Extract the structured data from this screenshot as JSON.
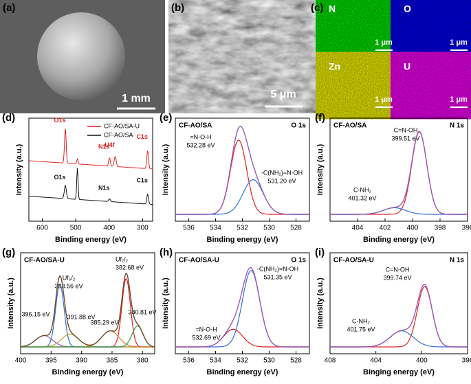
{
  "images": [
    {
      "label": "(a)",
      "scale_bar": "1 mm"
    },
    {
      "label": "(b)",
      "scale_bar": "5 μm"
    },
    {
      "label": "(c)",
      "maps": [
        {
          "element": "N",
          "scale_bar": "1 μm"
        },
        {
          "element": "O",
          "scale_bar": "1 μm"
        },
        {
          "element": "Zn",
          "scale_bar": "1 μm"
        },
        {
          "element": "U",
          "scale_bar": "1 μm"
        }
      ]
    }
  ],
  "chart_data": [
    {
      "type": "line",
      "panel_label": "(d)",
      "xlabel": "Binding energy (eV)",
      "ylabel": "Intensity (a.u.)",
      "xlim": [
        640,
        270
      ],
      "xticks": [
        600,
        500,
        400,
        300
      ],
      "series": [
        {
          "name": "CF-AO/SA-U",
          "color": "#e02020",
          "offset": 0.55,
          "peaks": [
            {
              "center": 531,
              "height": 0.42,
              "width": 2.5,
              "label": "O1s"
            },
            {
              "center": 495,
              "height": 0.06,
              "width": 2,
              "label": null
            },
            {
              "center": 399,
              "height": 0.1,
              "width": 2.5,
              "label": "N1s"
            },
            {
              "center": 382,
              "height": 0.12,
              "width": 3,
              "label": "U4f"
            },
            {
              "center": 285,
              "height": 0.22,
              "width": 2.5,
              "label": "C1s"
            }
          ]
        },
        {
          "name": "CF-AO/SA",
          "color": "#111111",
          "offset": 0.12,
          "peaks": [
            {
              "center": 531,
              "height": 0.16,
              "width": 3,
              "label": "O1s"
            },
            {
              "center": 495,
              "height": 0.38,
              "width": 2,
              "label": null
            },
            {
              "center": 399,
              "height": 0.03,
              "width": 3,
              "label": "N1s"
            },
            {
              "center": 285,
              "height": 0.12,
              "width": 2.5,
              "label": "C1s"
            }
          ]
        }
      ]
    },
    {
      "type": "line",
      "panel_label": "(e)",
      "title": "CF-AO/SA",
      "region": "O 1s",
      "xlabel": "Binding energy (eV)",
      "ylabel": "Intensity (a.u.)",
      "xlim": [
        537,
        527
      ],
      "xticks": [
        536,
        534,
        532,
        530,
        528
      ],
      "envelope_color": "#9b59b6",
      "components": [
        {
          "color": "#e02020",
          "center": 532.28,
          "height": 0.9,
          "width": 0.6,
          "label": [
            "=N-O-H",
            "532.28 eV"
          ]
        },
        {
          "color": "#2a6fd6",
          "center": 531.2,
          "height": 0.42,
          "width": 0.75,
          "label": [
            "-C(NH₂)=N-OH",
            "531.20 eV"
          ]
        }
      ]
    },
    {
      "type": "line",
      "panel_label": "(f)",
      "title": "CF-AO/SA",
      "region": "N 1s",
      "xlabel": "Binding energy (eV)",
      "ylabel": "Intensity (a.u.)",
      "xlim": [
        406,
        396
      ],
      "xticks": [
        404,
        402,
        400,
        398,
        396
      ],
      "envelope_color": "#9b59b6",
      "components": [
        {
          "color": "#e02020",
          "center": 399.51,
          "height": 1.0,
          "width": 0.55,
          "label": [
            "C=N-OH",
            "399.51 eV"
          ]
        },
        {
          "color": "#2a6fd6",
          "center": 401.32,
          "height": 0.08,
          "width": 0.8,
          "label": [
            "C-NH₂",
            "401.32 eV"
          ]
        }
      ]
    },
    {
      "type": "line",
      "panel_label": "(g)",
      "title": "CF-AO/SA-U",
      "xlabel": "Binding energy (eV)",
      "ylabel": "Intensity (a.u.)",
      "xlim": [
        400,
        378
      ],
      "xticks": [
        400,
        395,
        390,
        385,
        380
      ],
      "envelope_color": "#6b4a2a",
      "components": [
        {
          "color": "#2a6fd6",
          "center": 393.56,
          "height": 0.78,
          "width": 0.7,
          "label": [
            "Uf₅/₂",
            "393.56 eV"
          ]
        },
        {
          "color": "#e02020",
          "center": 382.68,
          "height": 0.85,
          "width": 0.7,
          "label": [
            "Uf₇/₂",
            "382.68 eV"
          ]
        },
        {
          "color": "#9b59b6",
          "center": 396.15,
          "height": 0.14,
          "width": 1.4,
          "label": [
            "396.15 eV"
          ]
        },
        {
          "color": "#c9a227",
          "center": 391.88,
          "height": 0.16,
          "width": 1.4,
          "label": [
            "391.88 eV"
          ]
        },
        {
          "color": "#e07b20",
          "center": 385.29,
          "height": 0.2,
          "width": 1.4,
          "label": [
            "385.29 eV"
          ]
        },
        {
          "color": "#2b9a4a",
          "center": 380.81,
          "height": 0.26,
          "width": 0.9,
          "label": [
            "380.81 eV"
          ]
        }
      ]
    },
    {
      "type": "line",
      "panel_label": "(h)",
      "title": "CF-AO/SA-U",
      "region": "O 1s",
      "xlabel": "Binding energy (eV)",
      "ylabel": "Intensity (a.u.)",
      "xlim": [
        537,
        527
      ],
      "xticks": [
        536,
        534,
        532,
        530,
        528
      ],
      "envelope_color": "#9b59b6",
      "components": [
        {
          "color": "#2a6fd6",
          "center": 531.35,
          "height": 0.95,
          "width": 0.65,
          "label": [
            "-C(NH₂)=N-OH",
            "531.35 eV"
          ]
        },
        {
          "color": "#e02020",
          "center": 532.69,
          "height": 0.22,
          "width": 0.7,
          "label": [
            "=N-O-H",
            "532.69 eV"
          ]
        }
      ]
    },
    {
      "type": "line",
      "panel_label": "(i)",
      "title": "CF-AO/SA-U",
      "region": "N 1s",
      "xlabel": "Binging energy (eV)",
      "ylabel": "Intensity (a.u.)",
      "xlim": [
        408,
        396
      ],
      "xticks": [
        408,
        404,
        400,
        396
      ],
      "envelope_color": "#9b59b6",
      "components": [
        {
          "color": "#e02020",
          "center": 399.74,
          "height": 0.75,
          "width": 0.65,
          "label": [
            "C=N-OH",
            "399.74 eV"
          ]
        },
        {
          "color": "#2a6fd6",
          "center": 401.75,
          "height": 0.2,
          "width": 1.0,
          "label": [
            "C-NH₂",
            "401.75 eV"
          ]
        }
      ]
    }
  ]
}
